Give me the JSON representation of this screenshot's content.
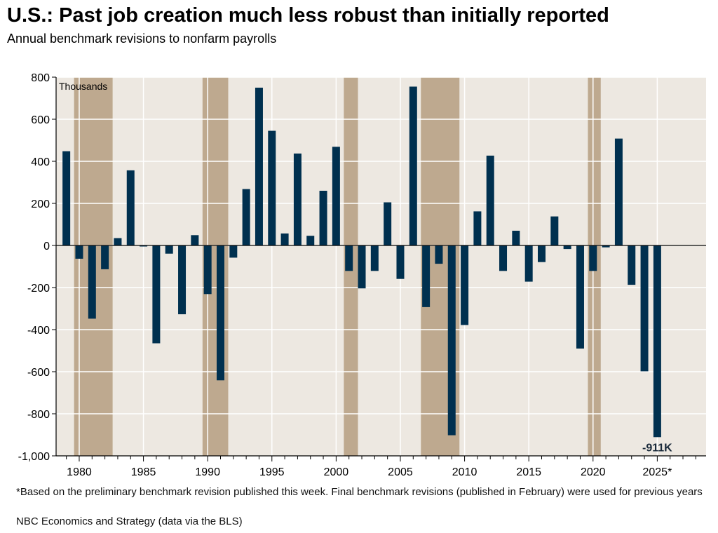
{
  "chart_data": {
    "type": "bar",
    "title": "U.S.: Past job creation much less robust than initially reported",
    "subtitle": "Annual benchmark revisions to nonfarm payrolls",
    "ylabel": "Thousands",
    "xlabel": "",
    "ylim": [
      -1000,
      800
    ],
    "xlim": [
      1978.2,
      2028.8
    ],
    "yticks": [
      -1000,
      -800,
      -600,
      -400,
      -200,
      0,
      200,
      400,
      600,
      800
    ],
    "ytick_labels": [
      "-1,000",
      "-800",
      "-600",
      "-400",
      "-200",
      "0",
      "200",
      "400",
      "600",
      "800"
    ],
    "xticks_major": [
      1980,
      1985,
      1990,
      1995,
      2000,
      2005,
      2010,
      2015,
      2020,
      2025
    ],
    "xtick_labels": [
      "1980",
      "1985",
      "1990",
      "1995",
      "2000",
      "2005",
      "2010",
      "2015",
      "2020",
      "2025*"
    ],
    "grid": true,
    "series": [
      {
        "name": "Benchmark revision",
        "color": "#00304f",
        "x": [
          1979,
          1980,
          1981,
          1982,
          1983,
          1984,
          1985,
          1986,
          1987,
          1988,
          1989,
          1990,
          1991,
          1992,
          1993,
          1994,
          1995,
          1996,
          1997,
          1998,
          1999,
          2000,
          2001,
          2002,
          2003,
          2004,
          2005,
          2006,
          2007,
          2008,
          2009,
          2010,
          2011,
          2012,
          2013,
          2014,
          2015,
          2016,
          2017,
          2018,
          2019,
          2020,
          2021,
          2022,
          2023,
          2024,
          2025
        ],
        "values": [
          448,
          -63,
          -348,
          -113,
          35,
          357,
          -5,
          -465,
          -39,
          -327,
          49,
          -231,
          -641,
          -58,
          268,
          750,
          545,
          57,
          437,
          46,
          260,
          469,
          -121,
          -204,
          -121,
          205,
          -159,
          755,
          -293,
          -87,
          -902,
          -378,
          162,
          427,
          -121,
          70,
          -172,
          -79,
          138,
          -17,
          -490,
          -121,
          -9,
          508,
          -187,
          -598,
          -911
        ]
      }
    ],
    "recessions": [
      {
        "start": 1979.6,
        "end": 1982.6
      },
      {
        "start": 1989.6,
        "end": 1991.6
      },
      {
        "start": 2000.6,
        "end": 2001.7
      },
      {
        "start": 2006.6,
        "end": 2009.6
      },
      {
        "start": 2019.6,
        "end": 2020.6
      }
    ],
    "annotations": [
      {
        "x": 2025,
        "value": -911,
        "text": "-911K"
      }
    ],
    "colors": {
      "bar": "#00304f",
      "plot_background": "#ede8e1",
      "recession": "#bea98f",
      "grid": "#ffffff",
      "axis": "#000000"
    }
  },
  "footnote": "*Based on the preliminary benchmark revision published this week. Final benchmark revisions (published in February) were used for previous years",
  "source": "NBC Economics and Strategy (data via the BLS)"
}
